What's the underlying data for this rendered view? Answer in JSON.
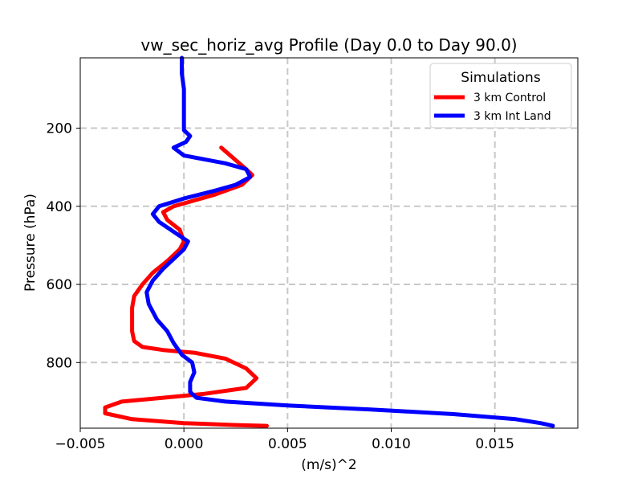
{
  "chart_data": {
    "type": "line",
    "title": "vw_sec_horiz_avg Profile (Day 0.0 to Day 90.0)",
    "xlabel": "(m/s)^2",
    "ylabel": "Pressure (hPa)",
    "xlim": [
      -0.005,
      0.019
    ],
    "ylim": [
      968,
      20
    ],
    "y_inverted": true,
    "grid": true,
    "xticks": [
      -0.005,
      0.0,
      0.005,
      0.01,
      0.015
    ],
    "xtick_labels": [
      "−0.005",
      "0.000",
      "0.005",
      "0.010",
      "0.015"
    ],
    "yticks": [
      200,
      400,
      600,
      800
    ],
    "ytick_labels": [
      "200",
      "400",
      "600",
      "800"
    ],
    "legend": {
      "title": "Simulations",
      "placement": "top-right"
    },
    "series": [
      {
        "name": "3 km Control",
        "color": "#ff0000",
        "points": [
          [
            0.0018,
            250
          ],
          [
            0.003,
            305
          ],
          [
            0.0033,
            320
          ],
          [
            0.0028,
            345
          ],
          [
            0.0015,
            370
          ],
          [
            0.0005,
            385
          ],
          [
            -0.0005,
            400
          ],
          [
            -0.001,
            415
          ],
          [
            -0.0008,
            435
          ],
          [
            -0.0002,
            460
          ],
          [
            0.0,
            490
          ],
          [
            -0.0002,
            510
          ],
          [
            -0.0008,
            540
          ],
          [
            -0.0015,
            570
          ],
          [
            -0.002,
            600
          ],
          [
            -0.0024,
            630
          ],
          [
            -0.0025,
            660
          ],
          [
            -0.0025,
            690
          ],
          [
            -0.0025,
            720
          ],
          [
            -0.0024,
            745
          ],
          [
            -0.002,
            760
          ],
          [
            -0.001,
            768
          ],
          [
            0.0005,
            775
          ],
          [
            0.002,
            790
          ],
          [
            0.003,
            815
          ],
          [
            0.0035,
            840
          ],
          [
            0.003,
            865
          ],
          [
            0.001,
            880
          ],
          [
            -0.001,
            890
          ],
          [
            -0.003,
            900
          ],
          [
            -0.0038,
            915
          ],
          [
            -0.0038,
            930
          ],
          [
            -0.0025,
            945
          ],
          [
            0.0,
            955
          ],
          [
            0.0025,
            960
          ],
          [
            0.004,
            962
          ]
        ]
      },
      {
        "name": "3 km Int Land",
        "color": "#0000ff",
        "points": [
          [
            -0.0001,
            20
          ],
          [
            -0.0001,
            60
          ],
          [
            0.0,
            100
          ],
          [
            0.0,
            140
          ],
          [
            0.0,
            180
          ],
          [
            0.0,
            205
          ],
          [
            0.0003,
            220
          ],
          [
            0.0001,
            235
          ],
          [
            -0.0005,
            250
          ],
          [
            0.0,
            270
          ],
          [
            0.002,
            290
          ],
          [
            0.003,
            305
          ],
          [
            0.0032,
            325
          ],
          [
            0.0025,
            345
          ],
          [
            0.0015,
            360
          ],
          [
            0.0,
            380
          ],
          [
            -0.0012,
            400
          ],
          [
            -0.0015,
            420
          ],
          [
            -0.0012,
            440
          ],
          [
            -0.0005,
            465
          ],
          [
            0.0002,
            490
          ],
          [
            0.0,
            510
          ],
          [
            -0.0005,
            535
          ],
          [
            -0.001,
            560
          ],
          [
            -0.0015,
            590
          ],
          [
            -0.0018,
            620
          ],
          [
            -0.0017,
            650
          ],
          [
            -0.0013,
            690
          ],
          [
            -0.0008,
            720
          ],
          [
            -0.0005,
            750
          ],
          [
            -0.0001,
            780
          ],
          [
            0.0004,
            800
          ],
          [
            0.0005,
            825
          ],
          [
            0.0003,
            850
          ],
          [
            0.0003,
            875
          ],
          [
            0.0006,
            890
          ],
          [
            0.002,
            900
          ],
          [
            0.005,
            910
          ],
          [
            0.009,
            920
          ],
          [
            0.013,
            932
          ],
          [
            0.016,
            945
          ],
          [
            0.0172,
            955
          ],
          [
            0.0178,
            962
          ]
        ]
      }
    ]
  }
}
